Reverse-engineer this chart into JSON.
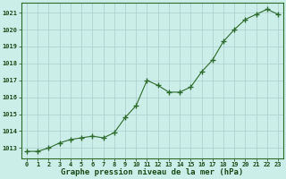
{
  "x": [
    0,
    1,
    2,
    3,
    4,
    5,
    6,
    7,
    8,
    9,
    10,
    11,
    12,
    13,
    14,
    15,
    16,
    17,
    18,
    19,
    20,
    21,
    22,
    23
  ],
  "y": [
    1012.8,
    1012.8,
    1013.0,
    1013.3,
    1013.5,
    1013.6,
    1013.7,
    1013.6,
    1013.9,
    1014.8,
    1015.5,
    1017.0,
    1016.7,
    1016.3,
    1016.3,
    1016.6,
    1017.5,
    1018.2,
    1019.3,
    1020.0,
    1020.6,
    1020.9,
    1021.2,
    1020.9
  ],
  "line_color": "#2d6a2d",
  "marker_color": "#2d6a2d",
  "bg_color": "#cceee8",
  "grid_color": "#aacccc",
  "xlabel": "Graphe pression niveau de la mer (hPa)",
  "xlabel_color": "#1a4a1a",
  "ylabel_ticks": [
    1013,
    1014,
    1015,
    1016,
    1017,
    1018,
    1019,
    1020,
    1021
  ],
  "ylim": [
    1012.4,
    1021.6
  ],
  "xlim": [
    -0.5,
    23.5
  ],
  "xticks": [
    0,
    1,
    2,
    3,
    4,
    5,
    6,
    7,
    8,
    9,
    10,
    11,
    12,
    13,
    14,
    15,
    16,
    17,
    18,
    19,
    20,
    21,
    22,
    23
  ],
  "tick_color": "#1a4a1a",
  "tick_fontsize": 5.0,
  "xlabel_fontsize": 6.5,
  "spine_color": "#2d6a2d"
}
